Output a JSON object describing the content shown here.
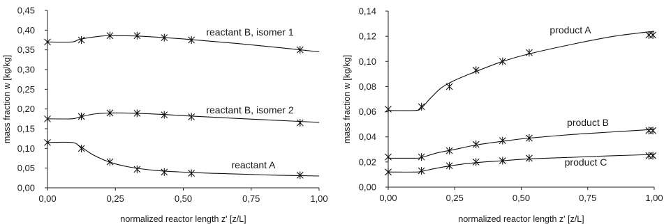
{
  "chart_data": [
    {
      "type": "line",
      "xlabel": "normalized reactor length z' [z/L]",
      "ylabel": "mass fraction w [kg/kg]",
      "xlim": [
        0,
        1
      ],
      "ylim": [
        0,
        0.45
      ],
      "xticks": [
        "0,00",
        "0,25",
        "0,50",
        "0,75",
        "1,00"
      ],
      "xtick_values": [
        0,
        0.25,
        0.5,
        0.75,
        1
      ],
      "yticks": [
        "0,00",
        "0,05",
        "0,10",
        "0,15",
        "0,20",
        "0,25",
        "0,30",
        "0,35",
        "0,40",
        "0,45"
      ],
      "ytick_values": [
        0,
        0.05,
        0.1,
        0.15,
        0.2,
        0.25,
        0.3,
        0.35,
        0.4,
        0.45
      ],
      "grid": false,
      "series": [
        {
          "name": "reactant B, isomer 1",
          "curve": [
            [
              0,
              0.37
            ],
            [
              0.09,
              0.37
            ],
            [
              0.12,
              0.377
            ],
            [
              0.2,
              0.385
            ],
            [
              0.25,
              0.386
            ],
            [
              0.33,
              0.385
            ],
            [
              0.43,
              0.381
            ],
            [
              0.53,
              0.376
            ],
            [
              0.7,
              0.366
            ],
            [
              0.85,
              0.356
            ],
            [
              1.0,
              0.345
            ]
          ],
          "points": [
            [
              0,
              0.37
            ],
            [
              0.125,
              0.375
            ],
            [
              0.23,
              0.386
            ],
            [
              0.33,
              0.386
            ],
            [
              0.43,
              0.381
            ],
            [
              0.53,
              0.375
            ],
            [
              0.93,
              0.35
            ]
          ]
        },
        {
          "name": "reactant B, isomer 2",
          "curve": [
            [
              0,
              0.175
            ],
            [
              0.09,
              0.175
            ],
            [
              0.12,
              0.18
            ],
            [
              0.18,
              0.188
            ],
            [
              0.25,
              0.19
            ],
            [
              0.33,
              0.189
            ],
            [
              0.43,
              0.186
            ],
            [
              0.53,
              0.182
            ],
            [
              0.7,
              0.176
            ],
            [
              0.85,
              0.171
            ],
            [
              1.0,
              0.166
            ]
          ],
          "points": [
            [
              0,
              0.175
            ],
            [
              0.125,
              0.181
            ],
            [
              0.23,
              0.19
            ],
            [
              0.33,
              0.189
            ],
            [
              0.43,
              0.185
            ],
            [
              0.53,
              0.18
            ],
            [
              0.93,
              0.165
            ]
          ]
        },
        {
          "name": "reactant A",
          "curve": [
            [
              0,
              0.115
            ],
            [
              0.09,
              0.115
            ],
            [
              0.12,
              0.105
            ],
            [
              0.17,
              0.083
            ],
            [
              0.23,
              0.065
            ],
            [
              0.3,
              0.053
            ],
            [
              0.4,
              0.044
            ],
            [
              0.53,
              0.039
            ],
            [
              0.7,
              0.035
            ],
            [
              0.85,
              0.032
            ],
            [
              1.0,
              0.03
            ]
          ],
          "points": [
            [
              0,
              0.115
            ],
            [
              0.125,
              0.1
            ],
            [
              0.23,
              0.066
            ],
            [
              0.33,
              0.047
            ],
            [
              0.43,
              0.04
            ],
            [
              0.53,
              0.037
            ],
            [
              0.93,
              0.032
            ]
          ]
        }
      ]
    },
    {
      "type": "line",
      "xlabel": "normalized reactor length z' [z/L]",
      "ylabel": "mass fraction w [kg/kg]",
      "xlim": [
        0,
        1
      ],
      "ylim": [
        0,
        0.14
      ],
      "xticks": [
        "0,00",
        "0,25",
        "0,50",
        "0,75",
        "1,00"
      ],
      "xtick_values": [
        0,
        0.25,
        0.5,
        0.75,
        1
      ],
      "yticks": [
        "0,00",
        "0,02",
        "0,04",
        "0,06",
        "0,08",
        "0,10",
        "0,12",
        "0,14"
      ],
      "ytick_values": [
        0,
        0.02,
        0.04,
        0.06,
        0.08,
        0.1,
        0.12,
        0.14
      ],
      "grid": false,
      "series": [
        {
          "name": "product A",
          "curve": [
            [
              0,
              0.061
            ],
            [
              0.1,
              0.061
            ],
            [
              0.125,
              0.063
            ],
            [
              0.16,
              0.071
            ],
            [
              0.2,
              0.079
            ],
            [
              0.25,
              0.085
            ],
            [
              0.33,
              0.092
            ],
            [
              0.43,
              0.1
            ],
            [
              0.53,
              0.106
            ],
            [
              0.7,
              0.114
            ],
            [
              0.85,
              0.12
            ],
            [
              1.0,
              0.124
            ]
          ],
          "points": [
            [
              0,
              0.062
            ],
            [
              0.125,
              0.064
            ],
            [
              0.23,
              0.08
            ],
            [
              0.33,
              0.093
            ],
            [
              0.43,
              0.1
            ],
            [
              0.53,
              0.107
            ],
            [
              0.98,
              0.121
            ],
            [
              0.995,
              0.121
            ]
          ]
        },
        {
          "name": "product B",
          "curve": [
            [
              0,
              0.023
            ],
            [
              0.1,
              0.023
            ],
            [
              0.125,
              0.0235
            ],
            [
              0.18,
              0.027
            ],
            [
              0.25,
              0.03
            ],
            [
              0.33,
              0.0335
            ],
            [
              0.43,
              0.0365
            ],
            [
              0.53,
              0.039
            ],
            [
              0.7,
              0.042
            ],
            [
              0.85,
              0.044
            ],
            [
              1.0,
              0.046
            ]
          ],
          "points": [
            [
              0,
              0.024
            ],
            [
              0.125,
              0.024
            ],
            [
              0.23,
              0.029
            ],
            [
              0.33,
              0.034
            ],
            [
              0.43,
              0.037
            ],
            [
              0.53,
              0.039
            ],
            [
              0.98,
              0.045
            ],
            [
              0.995,
              0.045
            ]
          ]
        },
        {
          "name": "product C",
          "curve": [
            [
              0,
              0.012
            ],
            [
              0.1,
              0.012
            ],
            [
              0.125,
              0.0125
            ],
            [
              0.18,
              0.015
            ],
            [
              0.25,
              0.0175
            ],
            [
              0.33,
              0.0195
            ],
            [
              0.43,
              0.021
            ],
            [
              0.53,
              0.0225
            ],
            [
              0.7,
              0.0238
            ],
            [
              0.85,
              0.025
            ],
            [
              1.0,
              0.026
            ]
          ],
          "points": [
            [
              0,
              0.012
            ],
            [
              0.125,
              0.013
            ],
            [
              0.23,
              0.017
            ],
            [
              0.33,
              0.02
            ],
            [
              0.43,
              0.021
            ],
            [
              0.53,
              0.023
            ],
            [
              0.98,
              0.025
            ],
            [
              0.995,
              0.025
            ]
          ]
        }
      ]
    }
  ]
}
